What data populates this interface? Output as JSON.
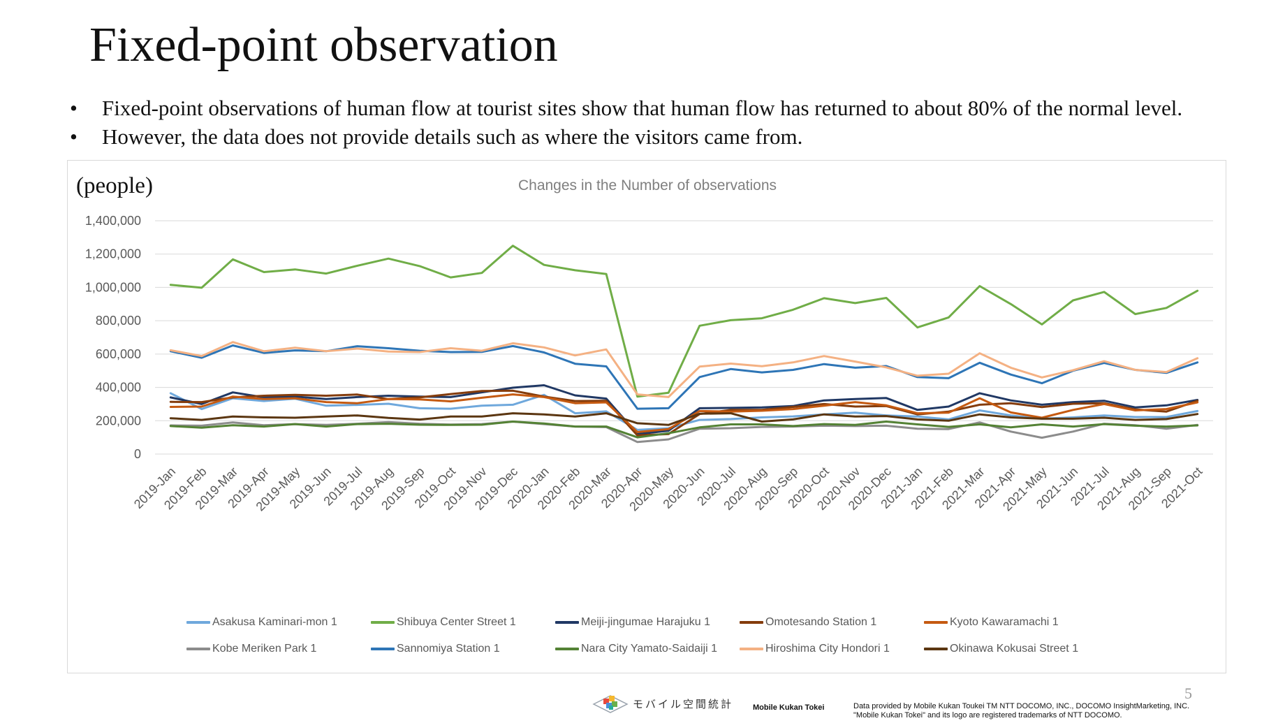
{
  "slide": {
    "title": "Fixed-point observation",
    "bullets": [
      "Fixed-point observations of human flow at tourist sites show that human flow has returned to about 80% of the normal level.",
      "However, the data does not provide details such as where the visitors came from."
    ],
    "bullet_symbol": "•",
    "page_number": "5"
  },
  "footer": {
    "logo_text": "モバイル空間統計",
    "logo_subtext": "Mobile Kukan Tokei",
    "credit_line1": "Data provided by Mobile Kukan Toukei TM NTT DOCOMO, INC., DOCOMO InsightMarketing, INC.",
    "credit_line2": "\"Mobile Kukan Tokei\" and its logo are registered trademarks of NTT DOCOMO.",
    "logo_icon": "cube-stack-icon"
  },
  "chart_data": {
    "type": "line",
    "title": "Changes in the Number of observations",
    "ylabel": "(people)",
    "xlabel": "",
    "ylim": [
      0,
      1400000
    ],
    "yticks": [
      0,
      200000,
      400000,
      600000,
      800000,
      1000000,
      1200000,
      1400000
    ],
    "ytick_labels": [
      "0",
      "200,000",
      "400,000",
      "600,000",
      "800,000",
      "1,000,000",
      "1,200,000",
      "1,400,000"
    ],
    "grid": true,
    "legend_position": "bottom",
    "categories": [
      "2019-Jan",
      "2019-Feb",
      "2019-Mar",
      "2019-Apr",
      "2019-May",
      "2019-Jun",
      "2019-Jul",
      "2019-Aug",
      "2019-Sep",
      "2019-Oct",
      "2019-Nov",
      "2019-Dec",
      "2020-Jan",
      "2020-Feb",
      "2020-Mar",
      "2020-Apr",
      "2020-May",
      "2020-Jun",
      "2020-Jul",
      "2020-Aug",
      "2020-Sep",
      "2020-Oct",
      "2020-Nov",
      "2020-Dec",
      "2021-Jan",
      "2021-Feb",
      "2021-Mar",
      "2021-Apr",
      "2021-May",
      "2021-Jun",
      "2021-Jul",
      "2021-Aug",
      "2021-Sep",
      "2021-Oct"
    ],
    "series": [
      {
        "name": "Asakusa Kaminari-mon 1",
        "color": "#6fa8dc",
        "values": [
          365000,
          270000,
          335000,
          318000,
          332000,
          290000,
          295000,
          302000,
          275000,
          272000,
          290000,
          296000,
          355000,
          245000,
          256000,
          145000,
          155000,
          205000,
          210000,
          220000,
          226000,
          238000,
          248000,
          232000,
          225000,
          208000,
          262000,
          232000,
          212000,
          220000,
          232000,
          222000,
          222000,
          258000
        ]
      },
      {
        "name": "Shibuya Center Street 1",
        "color": "#70ad47",
        "values": [
          1015000,
          998000,
          1168000,
          1092000,
          1108000,
          1083000,
          1130000,
          1173000,
          1128000,
          1060000,
          1087000,
          1250000,
          1135000,
          1103000,
          1080000,
          345000,
          368000,
          770000,
          803000,
          815000,
          866000,
          935000,
          906000,
          937000,
          760000,
          820000,
          1008000,
          900000,
          778000,
          922000,
          973000,
          840000,
          877000,
          980000
        ]
      },
      {
        "name": "Meiji-jingumae Harajuku 1",
        "color": "#203864",
        "values": [
          340000,
          300000,
          370000,
          340000,
          345000,
          330000,
          342000,
          350000,
          345000,
          342000,
          370000,
          398000,
          413000,
          352000,
          333000,
          120000,
          140000,
          275000,
          277000,
          280000,
          288000,
          322000,
          330000,
          336000,
          265000,
          285000,
          365000,
          322000,
          296000,
          312000,
          320000,
          280000,
          292000,
          325000
        ]
      },
      {
        "name": "Omotesando Station 1",
        "color": "#843c0c",
        "values": [
          313000,
          312000,
          340000,
          350000,
          355000,
          350000,
          357000,
          330000,
          340000,
          360000,
          378000,
          380000,
          345000,
          318000,
          320000,
          112000,
          120000,
          240000,
          265000,
          265000,
          283000,
          300000,
          285000,
          288000,
          238000,
          255000,
          296000,
          305000,
          282000,
          302000,
          305000,
          268000,
          255000,
          320000
        ]
      },
      {
        "name": "Kyoto Kawaramachi 1",
        "color": "#c55a11",
        "values": [
          283000,
          285000,
          345000,
          330000,
          335000,
          312000,
          305000,
          330000,
          328000,
          316000,
          338000,
          358000,
          342000,
          305000,
          310000,
          132000,
          150000,
          258000,
          255000,
          260000,
          270000,
          290000,
          312000,
          292000,
          245000,
          248000,
          335000,
          250000,
          218000,
          265000,
          300000,
          262000,
          270000,
          310000
        ]
      },
      {
        "name": "Kobe Meriken Park 1",
        "color": "#8c8c8c",
        "values": [
          172000,
          170000,
          190000,
          173000,
          180000,
          175000,
          182000,
          192000,
          182000,
          177000,
          180000,
          195000,
          180000,
          165000,
          162000,
          72000,
          88000,
          152000,
          155000,
          163000,
          165000,
          170000,
          168000,
          170000,
          152000,
          150000,
          190000,
          135000,
          98000,
          135000,
          182000,
          173000,
          152000,
          175000
        ]
      },
      {
        "name": "Sannomiya Station 1",
        "color": "#2e75b6",
        "values": [
          617000,
          578000,
          652000,
          607000,
          622000,
          617000,
          647000,
          635000,
          620000,
          612000,
          613000,
          648000,
          610000,
          542000,
          526000,
          272000,
          275000,
          462000,
          510000,
          490000,
          505000,
          540000,
          518000,
          528000,
          462000,
          455000,
          548000,
          477000,
          425000,
          500000,
          547000,
          505000,
          487000,
          550000
        ]
      },
      {
        "name": "Nara City Yamato-Saidaiji 1",
        "color": "#548235",
        "values": [
          168000,
          158000,
          173000,
          165000,
          180000,
          165000,
          180000,
          182000,
          176000,
          175000,
          176000,
          195000,
          183000,
          165000,
          165000,
          100000,
          125000,
          160000,
          178000,
          178000,
          168000,
          180000,
          175000,
          195000,
          178000,
          163000,
          178000,
          160000,
          178000,
          165000,
          180000,
          170000,
          165000,
          172000
        ]
      },
      {
        "name": "Hiroshima City Hondori 1",
        "color": "#f4b183",
        "values": [
          623000,
          588000,
          672000,
          617000,
          638000,
          617000,
          633000,
          615000,
          612000,
          635000,
          620000,
          665000,
          640000,
          592000,
          628000,
          358000,
          342000,
          525000,
          543000,
          527000,
          550000,
          588000,
          555000,
          520000,
          470000,
          482000,
          605000,
          518000,
          460000,
          503000,
          557000,
          505000,
          492000,
          575000
        ]
      },
      {
        "name": "Okinawa Kokusai Street 1",
        "color": "#5b3611",
        "values": [
          215000,
          205000,
          225000,
          220000,
          218000,
          225000,
          232000,
          217000,
          207000,
          225000,
          225000,
          245000,
          238000,
          225000,
          245000,
          185000,
          175000,
          242000,
          245000,
          195000,
          208000,
          238000,
          225000,
          228000,
          208000,
          200000,
          238000,
          220000,
          212000,
          212000,
          218000,
          205000,
          210000,
          240000
        ]
      }
    ]
  }
}
